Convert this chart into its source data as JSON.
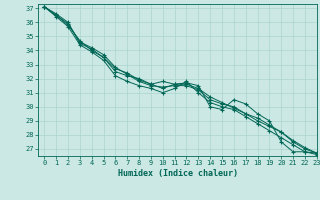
{
  "xlabel": "Humidex (Indice chaleur)",
  "bg_color": "#cce8e4",
  "grid_color": "#aad4d0",
  "line_color": "#006655",
  "xlim": [
    -0.5,
    23
  ],
  "ylim": [
    26.5,
    37.3
  ],
  "x": [
    0,
    1,
    2,
    3,
    4,
    5,
    6,
    7,
    8,
    9,
    10,
    11,
    12,
    13,
    14,
    15,
    16,
    17,
    18,
    19,
    20,
    21,
    22,
    23
  ],
  "yticks": [
    27,
    28,
    29,
    30,
    31,
    32,
    33,
    34,
    35,
    36,
    37
  ],
  "xticks": [
    0,
    1,
    2,
    3,
    4,
    5,
    6,
    7,
    8,
    9,
    10,
    11,
    12,
    13,
    14,
    15,
    16,
    17,
    18,
    19,
    20,
    21,
    22,
    23
  ],
  "series": [
    [
      37.1,
      36.6,
      36.0,
      34.5,
      34.1,
      33.5,
      32.5,
      32.2,
      32.0,
      31.6,
      31.8,
      31.6,
      31.7,
      31.5,
      30.0,
      29.8,
      30.5,
      30.2,
      29.5,
      29.0,
      27.5,
      26.8,
      26.8,
      26.7
    ],
    [
      37.1,
      36.5,
      35.9,
      34.6,
      34.2,
      33.7,
      32.8,
      32.3,
      31.8,
      31.5,
      31.4,
      31.5,
      31.5,
      31.2,
      30.5,
      30.2,
      30.0,
      29.5,
      29.0,
      28.6,
      28.2,
      27.5,
      27.0,
      26.7
    ],
    [
      37.1,
      36.5,
      35.8,
      34.7,
      34.0,
      33.5,
      32.7,
      32.4,
      31.9,
      31.6,
      31.3,
      31.6,
      31.6,
      31.3,
      30.7,
      30.3,
      29.9,
      29.5,
      29.2,
      28.7,
      28.2,
      27.6,
      27.1,
      26.7
    ],
    [
      37.1,
      36.4,
      35.7,
      34.4,
      33.9,
      33.3,
      32.2,
      31.8,
      31.5,
      31.3,
      31.0,
      31.3,
      31.8,
      31.0,
      30.3,
      30.0,
      29.8,
      29.3,
      28.8,
      28.3,
      27.8,
      27.3,
      26.8,
      26.6
    ]
  ]
}
